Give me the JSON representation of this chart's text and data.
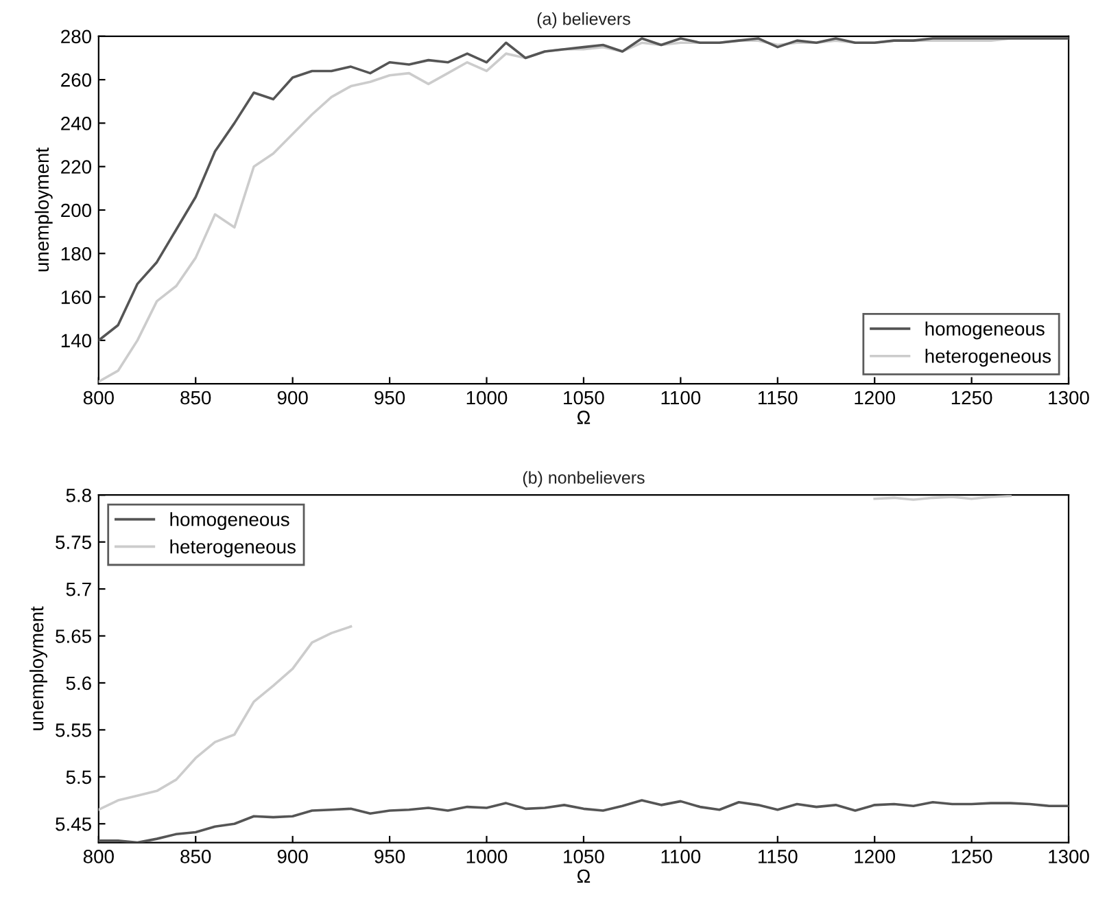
{
  "chart_data": [
    {
      "type": "line",
      "title": "(a) believers",
      "xlabel": "Ω",
      "ylabel": "unemployment",
      "x": [
        800,
        810,
        820,
        830,
        840,
        850,
        860,
        870,
        880,
        890,
        900,
        910,
        920,
        930,
        940,
        950,
        960,
        970,
        980,
        990,
        1000,
        1010,
        1020,
        1030,
        1040,
        1050,
        1060,
        1070,
        1080,
        1090,
        1100,
        1110,
        1120,
        1130,
        1140,
        1150,
        1160,
        1170,
        1180,
        1190,
        1200,
        1210,
        1220,
        1230,
        1240,
        1250,
        1260,
        1270,
        1280,
        1290,
        1300
      ],
      "xlim": [
        800,
        1300
      ],
      "xticks": [
        800,
        850,
        900,
        950,
        1000,
        1050,
        1100,
        1150,
        1200,
        1250,
        1300
      ],
      "ylim": [
        120,
        280
      ],
      "yticks": [
        140,
        160,
        180,
        200,
        220,
        240,
        260,
        280
      ],
      "grid": false,
      "legend": "bottom right",
      "series": [
        {
          "name": "homogeneous",
          "color": "#555555",
          "values": [
            140,
            147,
            166,
            176,
            191,
            206,
            227,
            240,
            254,
            251,
            261,
            264,
            264,
            266,
            263,
            268,
            267,
            269,
            268,
            272,
            268,
            277,
            270,
            273,
            274,
            275,
            276,
            273,
            279,
            276,
            279,
            277,
            277,
            278,
            279,
            275,
            278,
            277,
            279,
            277,
            277,
            278,
            278,
            279,
            279,
            279,
            279,
            279,
            279,
            279,
            279
          ]
        },
        {
          "name": "heterogeneous",
          "color": "#cccccc",
          "values": [
            121,
            126,
            140,
            158,
            165,
            178,
            198,
            192,
            220,
            226,
            235,
            244,
            252,
            257,
            259,
            262,
            263,
            258,
            263,
            268,
            264,
            272,
            270,
            273,
            274,
            274,
            275,
            273,
            277,
            276,
            277,
            277,
            277,
            278,
            278,
            276,
            277,
            277,
            278,
            277,
            277,
            278,
            278,
            278,
            278,
            278,
            278,
            279,
            279,
            279,
            279
          ]
        }
      ]
    },
    {
      "type": "line",
      "title": "(b) nonbelievers",
      "xlabel": "Ω",
      "ylabel": "unemployment",
      "x": [
        800,
        810,
        820,
        830,
        840,
        850,
        860,
        870,
        880,
        890,
        900,
        910,
        920,
        930,
        940,
        950,
        960,
        970,
        980,
        990,
        1000,
        1010,
        1020,
        1030,
        1040,
        1050,
        1060,
        1070,
        1080,
        1090,
        1100,
        1110,
        1120,
        1130,
        1140,
        1150,
        1160,
        1170,
        1180,
        1190,
        1200,
        1210,
        1220,
        1230,
        1240,
        1250,
        1260,
        1270,
        1280,
        1290,
        1300
      ],
      "xlim": [
        800,
        1300
      ],
      "xticks": [
        800,
        850,
        900,
        950,
        1000,
        1050,
        1100,
        1150,
        1200,
        1250,
        1300
      ],
      "ylim": [
        5.43,
        5.8
      ],
      "yticks": [
        5.45,
        5.5,
        5.55,
        5.6,
        5.65,
        5.7,
        5.75,
        5.8
      ],
      "grid": false,
      "legend": "top left",
      "series": [
        {
          "name": "homogeneous",
          "color": "#555555",
          "values": [
            5.432,
            5.432,
            5.43,
            5.434,
            5.439,
            5.441,
            5.447,
            5.45,
            5.458,
            5.457,
            5.458,
            5.464,
            5.465,
            5.466,
            5.461,
            5.464,
            5.465,
            5.467,
            5.464,
            5.468,
            5.467,
            5.472,
            5.466,
            5.467,
            5.47,
            5.466,
            5.464,
            5.469,
            5.475,
            5.47,
            5.474,
            5.468,
            5.465,
            5.473,
            5.47,
            5.465,
            5.471,
            5.468,
            5.47,
            5.464,
            5.47,
            5.471,
            5.469,
            5.473,
            5.471,
            5.471,
            5.472,
            5.472,
            5.471,
            5.469,
            5.469
          ]
        },
        {
          "name": "heterogeneous",
          "color": "#cccccc",
          "values": [
            5.465,
            5.475,
            5.48,
            5.485,
            5.497,
            5.52,
            5.537,
            5.545,
            5.58,
            5.597,
            5.615,
            5.643,
            5.653,
            5.66,
            null,
            null,
            null,
            null,
            null,
            null,
            null,
            null,
            null,
            null,
            null,
            null,
            null,
            null,
            null,
            null,
            null,
            null,
            null,
            null,
            null,
            null,
            null,
            null,
            null,
            null,
            5.796,
            5.797,
            5.795,
            5.797,
            5.798,
            5.796,
            5.798,
            5.799,
            null,
            null,
            null
          ]
        }
      ]
    }
  ]
}
